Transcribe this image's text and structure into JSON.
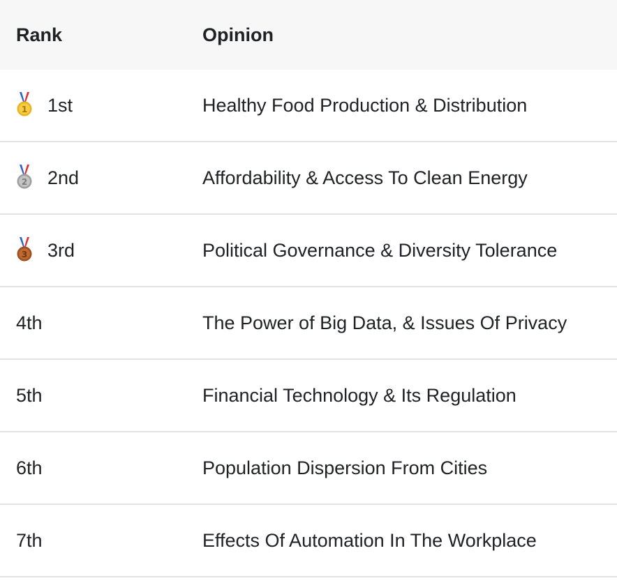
{
  "table": {
    "headers": {
      "rank": "Rank",
      "opinion": "Opinion"
    },
    "rows": [
      {
        "rank": "1st",
        "opinion": "Healthy Food Production & Distribution",
        "medal": "gold-medal-icon"
      },
      {
        "rank": "2nd",
        "opinion": "Affordability & Access To Clean Energy",
        "medal": "silver-medal-icon"
      },
      {
        "rank": "3rd",
        "opinion": "Political Governance & Diversity Tolerance",
        "medal": "bronze-medal-icon"
      },
      {
        "rank": "4th",
        "opinion": "The Power of Big Data, & Issues Of Privacy"
      },
      {
        "rank": "5th",
        "opinion": "Financial Technology & Its Regulation"
      },
      {
        "rank": "6th",
        "opinion": "Population Dispersion From Cities"
      },
      {
        "rank": "7th",
        "opinion": "Effects Of Automation In The Workplace"
      }
    ]
  },
  "colors": {
    "header_bg": "#f7f7f7",
    "divider": "#e2e2e2",
    "text": "#202124",
    "gold": "#e8b521",
    "silver": "#a8a8a8",
    "bronze": "#b4622c"
  }
}
